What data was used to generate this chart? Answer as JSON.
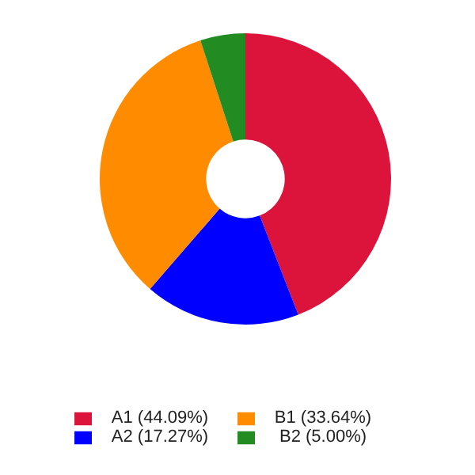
{
  "chart_data": {
    "type": "donut",
    "categories": [
      "A1 (44.09%)",
      "A2 (17.27%)",
      "B1 (33.64%)",
      "B2 (5.00%)"
    ],
    "values": [
      44.09,
      17.27,
      33.64,
      5.0
    ],
    "colors": [
      "#dc143c",
      "#0000ff",
      "#ff8c00",
      "#228b22"
    ],
    "legend": "bottom"
  }
}
